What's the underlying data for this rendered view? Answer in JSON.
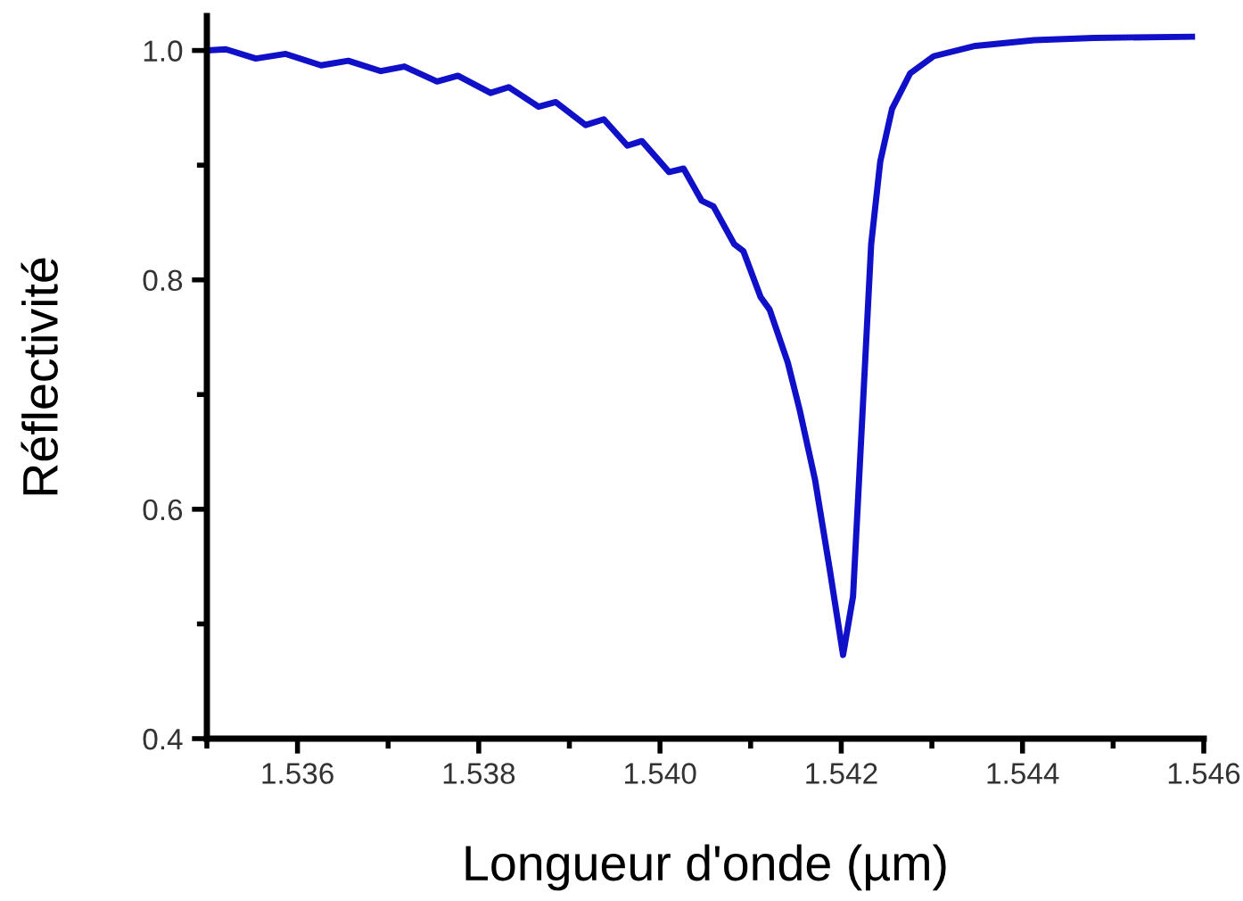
{
  "chart_data": {
    "type": "line",
    "xlabel": "Longueur d'onde (µm)",
    "ylabel": "Réflectivité",
    "xlim": [
      1.535,
      1.546
    ],
    "ylim": [
      0.4,
      1.03
    ],
    "xticks": [
      {
        "value": 1.536,
        "label": "1.536"
      },
      {
        "value": 1.538,
        "label": "1.538"
      },
      {
        "value": 1.54,
        "label": "1.540"
      },
      {
        "value": 1.542,
        "label": "1.542"
      },
      {
        "value": 1.544,
        "label": "1.544"
      },
      {
        "value": 1.546,
        "label": "1.546"
      }
    ],
    "yticks": [
      {
        "value": 0.4,
        "label": "0.4"
      },
      {
        "value": 0.6,
        "label": "0.6"
      },
      {
        "value": 0.8,
        "label": "0.8"
      },
      {
        "value": 1.0,
        "label": "1.0"
      }
    ],
    "grid": false,
    "legend": false,
    "marker": "none",
    "line_style": "solid",
    "series": [
      {
        "color": "#1010c8",
        "x": [
          1.53501,
          1.53521,
          1.53554,
          1.53587,
          1.53626,
          1.53656,
          1.53692,
          1.53718,
          1.53754,
          1.53777,
          1.53813,
          1.53833,
          1.53866,
          1.53885,
          1.53918,
          1.53938,
          1.53964,
          1.5398,
          1.5401,
          1.54026,
          1.54046,
          1.54059,
          1.54082,
          1.54092,
          1.54111,
          1.54121,
          1.54141,
          1.54154,
          1.54171,
          1.54187,
          1.54202,
          1.54213,
          1.54223,
          1.54233,
          1.54243,
          1.54256,
          1.54276,
          1.54302,
          1.54348,
          1.54413,
          1.54479,
          1.54587
        ],
        "values": [
          1.0,
          1.001,
          0.993,
          0.997,
          0.987,
          0.991,
          0.982,
          0.986,
          0.973,
          0.978,
          0.963,
          0.968,
          0.951,
          0.955,
          0.935,
          0.94,
          0.917,
          0.921,
          0.894,
          0.897,
          0.869,
          0.864,
          0.831,
          0.825,
          0.785,
          0.774,
          0.728,
          0.687,
          0.626,
          0.549,
          0.473,
          0.524,
          0.677,
          0.831,
          0.903,
          0.949,
          0.98,
          0.995,
          1.004,
          1.009,
          1.011,
          1.012
        ]
      }
    ]
  }
}
